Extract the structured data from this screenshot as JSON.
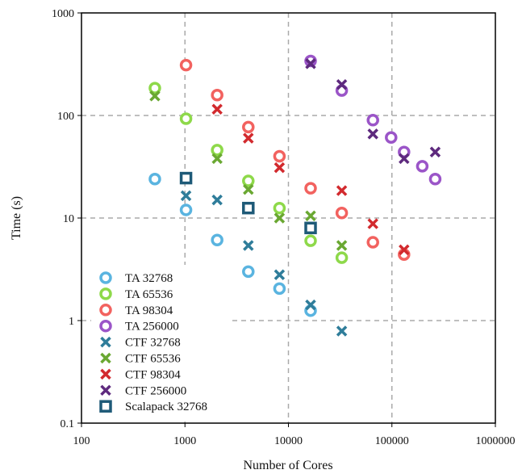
{
  "chart_data": {
    "type": "scatter",
    "title": "",
    "xlabel": "Number of Cores",
    "ylabel": "Time (s)",
    "xscale": "log",
    "yscale": "log",
    "xlim": [
      100,
      1000000
    ],
    "ylim": [
      0.1,
      1000
    ],
    "x_ticks": [
      "100",
      "1000",
      "10000",
      "100000",
      "1000000"
    ],
    "y_ticks": [
      "0.1",
      "1",
      "10",
      "100",
      "1000"
    ],
    "grid": "dashed, major decades",
    "legend_position": "lower-left",
    "series": [
      {
        "name": "TA 32768",
        "marker": "circle",
        "color": "#5ab4e0",
        "points": [
          [
            512,
            24
          ],
          [
            1024,
            12
          ],
          [
            2048,
            6.1
          ],
          [
            4096,
            3.0
          ],
          [
            8192,
            2.05
          ],
          [
            16384,
            1.25
          ]
        ]
      },
      {
        "name": "TA 65536",
        "marker": "circle",
        "color": "#8ed94a",
        "points": [
          [
            512,
            185
          ],
          [
            1024,
            93
          ],
          [
            2048,
            46
          ],
          [
            4096,
            23
          ],
          [
            8192,
            12.5
          ],
          [
            16384,
            6.0
          ],
          [
            32768,
            4.1
          ]
        ]
      },
      {
        "name": "TA 98304",
        "marker": "circle",
        "color": "#f2625f",
        "points": [
          [
            1024,
            310
          ],
          [
            2048,
            158
          ],
          [
            4096,
            77
          ],
          [
            8192,
            40
          ],
          [
            16384,
            19.5
          ],
          [
            32768,
            11.2
          ],
          [
            65536,
            5.8
          ],
          [
            131072,
            4.4
          ]
        ]
      },
      {
        "name": "TA 256000",
        "marker": "circle",
        "color": "#9b55c8",
        "points": [
          [
            16384,
            340
          ],
          [
            32768,
            175
          ],
          [
            65536,
            90
          ],
          [
            98304,
            61
          ],
          [
            131072,
            44
          ],
          [
            196608,
            32
          ],
          [
            262144,
            24
          ]
        ]
      },
      {
        "name": "CTF 32768",
        "marker": "x",
        "color": "#2f7d9a",
        "points": [
          [
            1024,
            16.5
          ],
          [
            2048,
            15
          ],
          [
            4096,
            5.4
          ],
          [
            8192,
            2.8
          ],
          [
            16384,
            1.42
          ],
          [
            32768,
            0.79
          ]
        ]
      },
      {
        "name": "CTF 65536",
        "marker": "x",
        "color": "#6aa832",
        "points": [
          [
            512,
            155
          ],
          [
            2048,
            38
          ],
          [
            4096,
            19
          ],
          [
            8192,
            10
          ],
          [
            16384,
            10.5
          ],
          [
            32768,
            5.4
          ]
        ]
      },
      {
        "name": "CTF 98304",
        "marker": "x",
        "color": "#d22a2e",
        "points": [
          [
            2048,
            115
          ],
          [
            4096,
            60
          ],
          [
            8192,
            31
          ],
          [
            32768,
            18.5
          ],
          [
            65536,
            8.8
          ],
          [
            131072,
            4.9
          ]
        ]
      },
      {
        "name": "CTF 256000",
        "marker": "x",
        "color": "#5e2a7e",
        "points": [
          [
            16384,
            320
          ],
          [
            32768,
            200
          ],
          [
            65536,
            66
          ],
          [
            131072,
            38
          ],
          [
            262144,
            44
          ]
        ]
      },
      {
        "name": "Scalapack 32768",
        "marker": "square",
        "color": "#1e5a78",
        "points": [
          [
            1024,
            24.5
          ],
          [
            4096,
            12.5
          ],
          [
            16384,
            8.0
          ]
        ]
      }
    ]
  }
}
